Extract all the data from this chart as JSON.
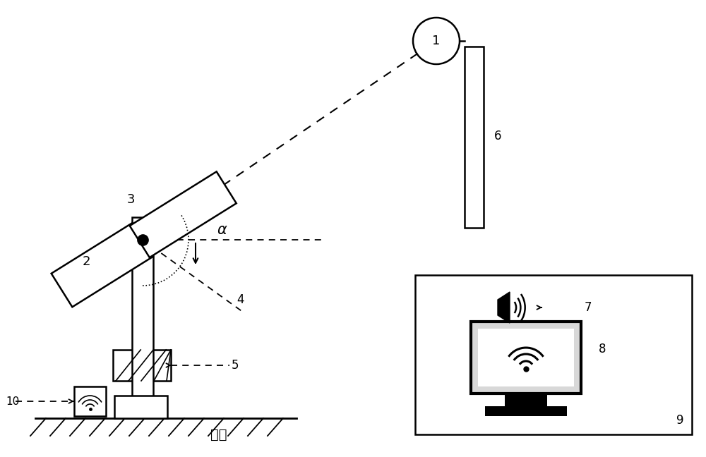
{
  "bg_color": "#ffffff",
  "line_color": "#000000",
  "figsize": [
    10.0,
    6.48
  ],
  "dpi": 100
}
